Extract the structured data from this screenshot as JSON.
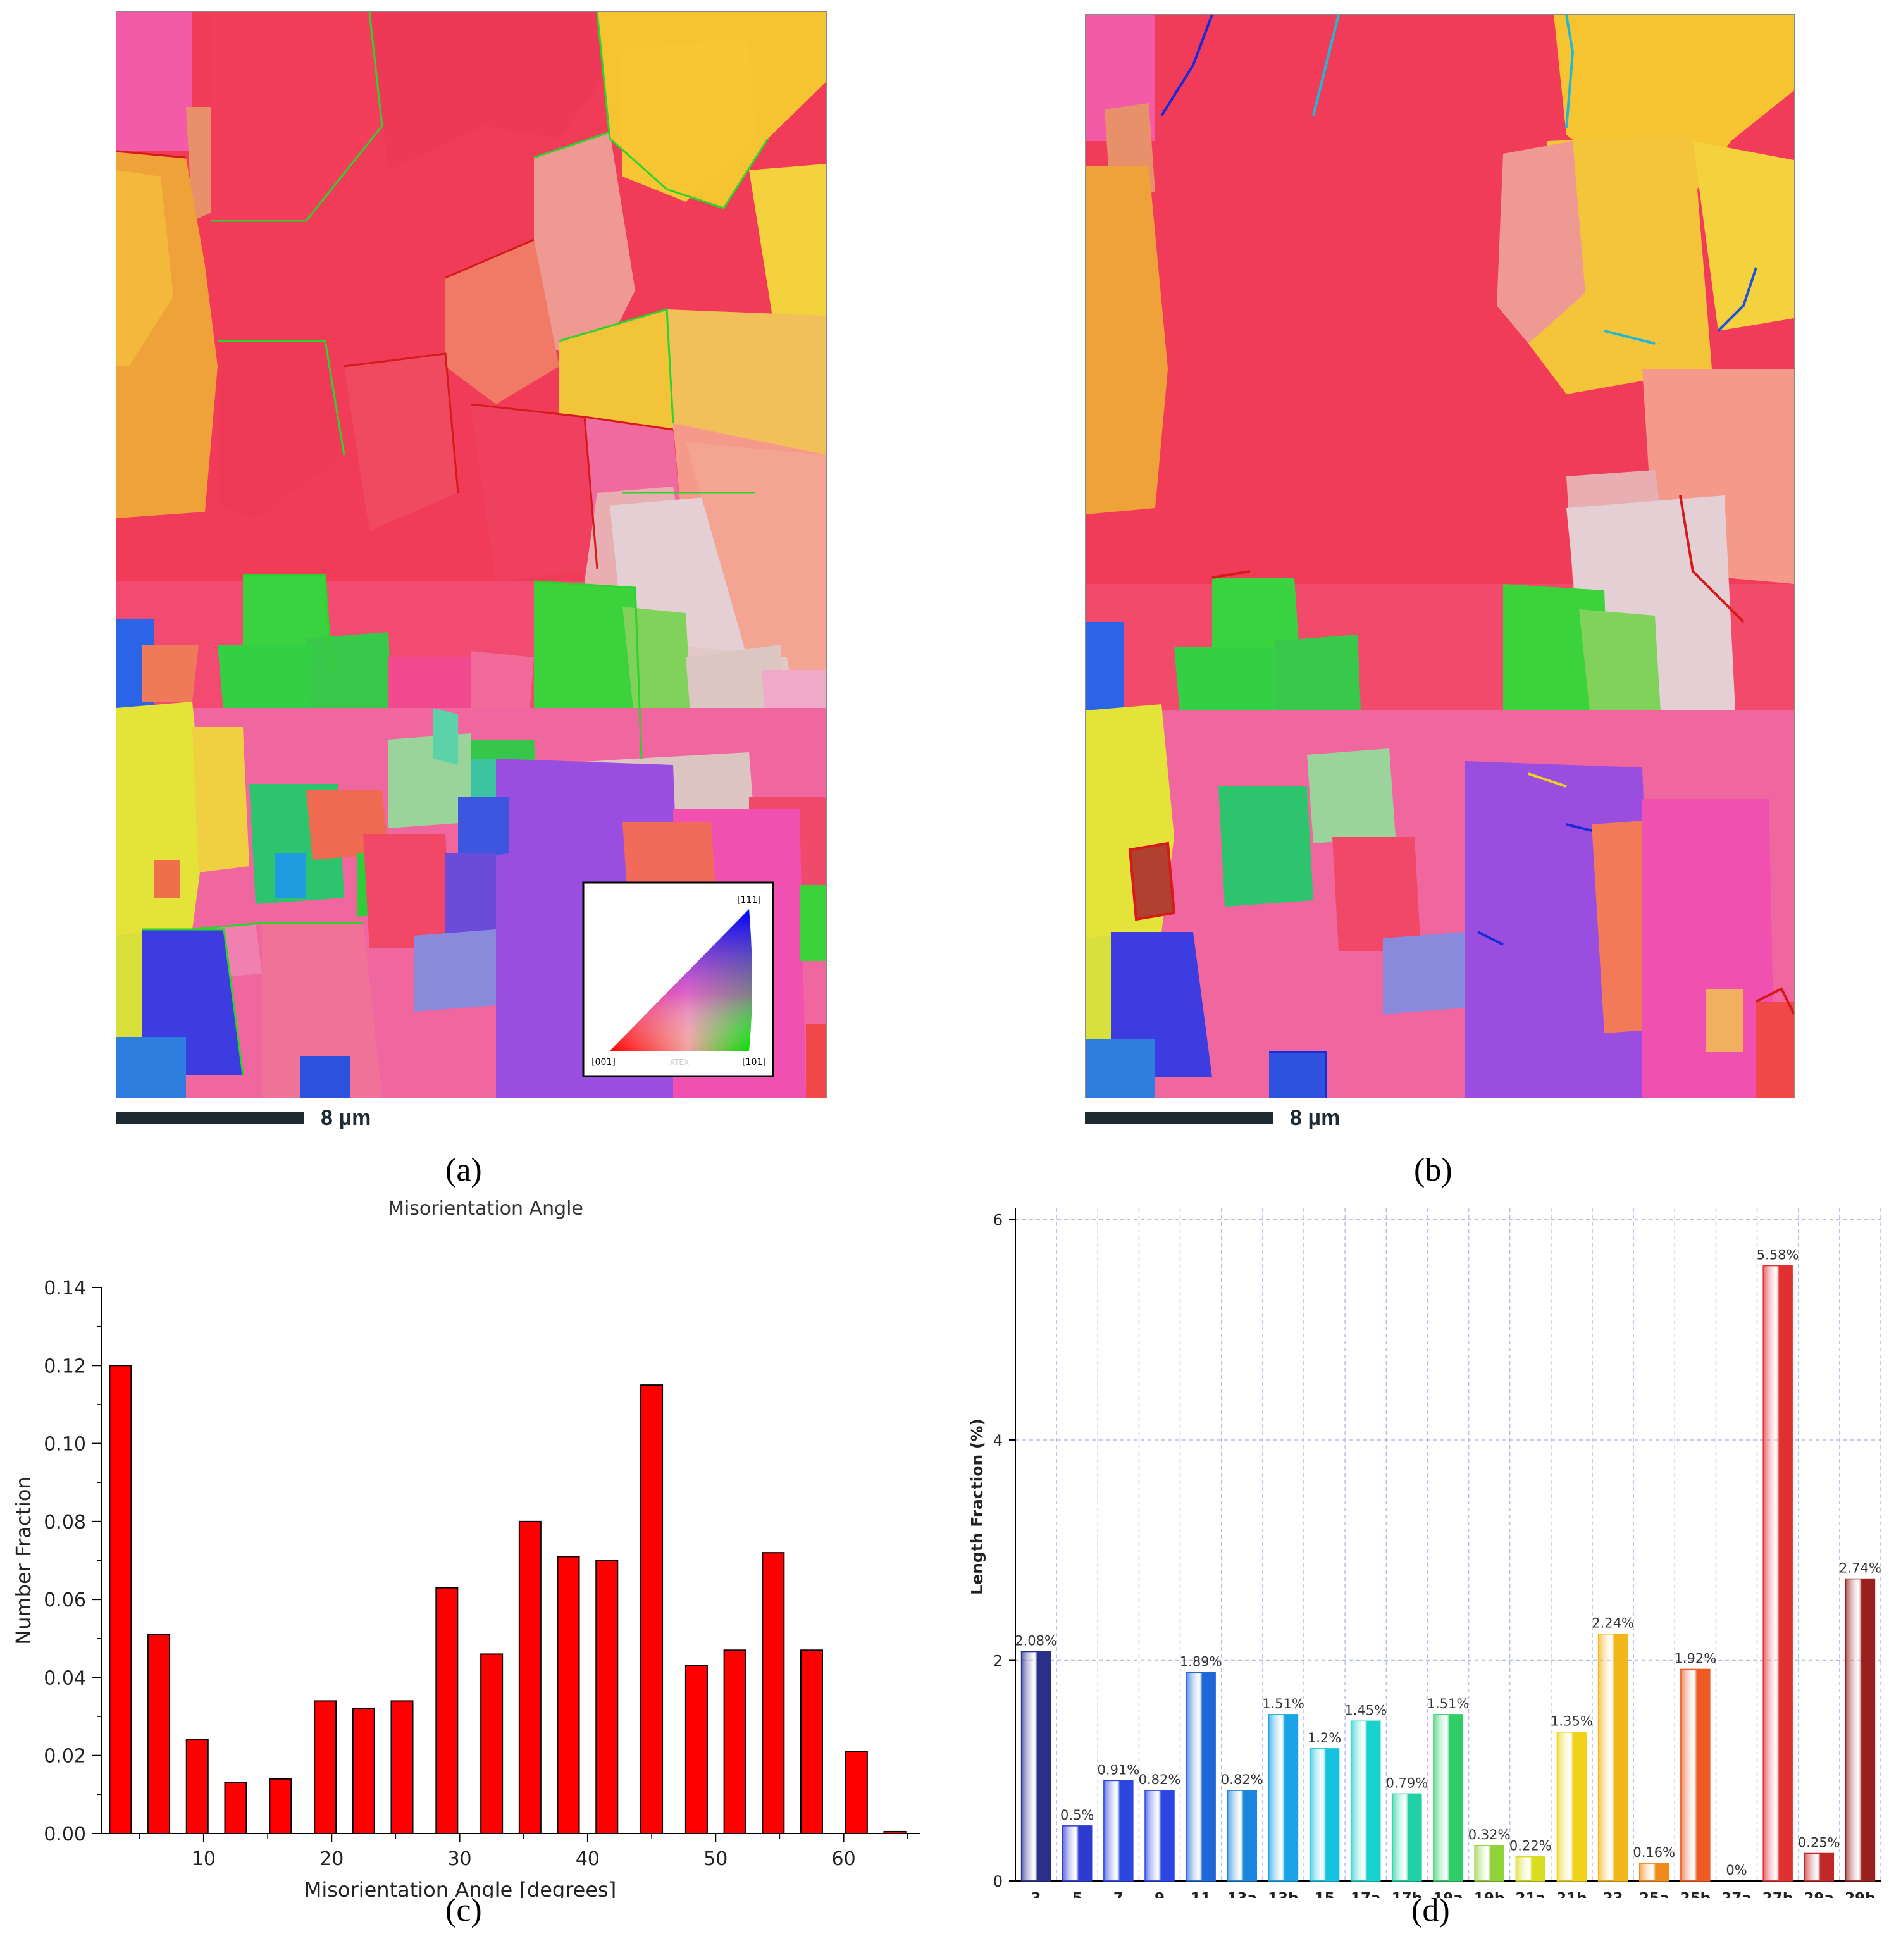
{
  "panels": {
    "a": {
      "caption": "(a)",
      "scale_label": "8 μm",
      "ipf_legend": {
        "top": "[111]",
        "left": "[001]",
        "right": "[101]",
        "watermark": "ATEX"
      }
    },
    "b": {
      "caption": "(b)",
      "scale_label": "8 μm"
    },
    "c": {
      "caption": "(c)"
    },
    "d": {
      "caption": "(d)"
    }
  },
  "chart_data": [
    {
      "id": "c",
      "type": "bar",
      "title": "Misorientation Angle",
      "xlabel": "Misorientation Angle [degrees]",
      "ylabel": "Number Fraction",
      "xlim": [
        2,
        66
      ],
      "ylim": [
        0,
        0.14
      ],
      "xticks": [
        10,
        20,
        30,
        40,
        50,
        60
      ],
      "yticks": [
        0.0,
        0.02,
        0.04,
        0.06,
        0.08,
        0.1,
        0.12,
        0.14
      ],
      "ytick_labels": [
        "0.00",
        "0.02",
        "0.04",
        "0.06",
        "0.08",
        "0.10",
        "0.12",
        "0.14"
      ],
      "bar_color": "#ff0000",
      "x": [
        3.5,
        6.5,
        9.5,
        12.5,
        16,
        19.5,
        22.5,
        25.5,
        29,
        32.5,
        35.5,
        38.5,
        41.5,
        45,
        48.5,
        51.5,
        54.5,
        57.5,
        61,
        64
      ],
      "values": [
        0.12,
        0.051,
        0.024,
        0.013,
        0.014,
        0.034,
        0.032,
        0.034,
        0.063,
        0.046,
        0.08,
        0.071,
        0.07,
        0.115,
        0.043,
        0.047,
        0.072,
        0.047,
        0.021,
        0.0005
      ]
    },
    {
      "id": "d",
      "type": "bar",
      "title": "",
      "xlabel": "",
      "ylabel": "Length Fraction (%)",
      "ylim": [
        0,
        6.1
      ],
      "yticks": [
        0,
        2,
        4,
        6
      ],
      "ytick_labels": [
        "0",
        "2",
        "4",
        "6"
      ],
      "grid": true,
      "categories": [
        "3",
        "5",
        "7",
        "9",
        "11",
        "13a",
        "13b",
        "15",
        "17a",
        "17b",
        "19a",
        "19b",
        "21a",
        "21b",
        "23",
        "25a",
        "25b",
        "27a",
        "27b",
        "29a",
        "29b"
      ],
      "values": [
        2.08,
        0.5,
        0.91,
        0.82,
        1.89,
        0.82,
        1.51,
        1.2,
        1.45,
        0.79,
        1.51,
        0.32,
        0.22,
        1.35,
        2.24,
        0.16,
        1.92,
        0,
        5.58,
        0.25,
        2.74
      ],
      "value_labels": [
        "2.08%",
        "0.5%",
        "0.91%",
        "0.82%",
        "1.89%",
        "0.82%",
        "1.51%",
        "1.2%",
        "1.45%",
        "0.79%",
        "1.51%",
        "0.32%",
        "0.22%",
        "1.35%",
        "2.24%",
        "0.16%",
        "1.92%",
        "0%",
        "5.58%",
        "0.25%",
        "2.74%"
      ],
      "bar_colors": [
        "#2a2f8a",
        "#2d3ad0",
        "#2f45df",
        "#2c45e5",
        "#1f66d9",
        "#1a86e0",
        "#18a4e6",
        "#16c2e0",
        "#18d2cc",
        "#1fd1a4",
        "#2ecd6a",
        "#8fd23a",
        "#d7dd20",
        "#f0d21a",
        "#f2b51a",
        "#f08a1a",
        "#ee5a24",
        "#d23030",
        "#e03030",
        "#c02828",
        "#9a2020"
      ]
    }
  ]
}
